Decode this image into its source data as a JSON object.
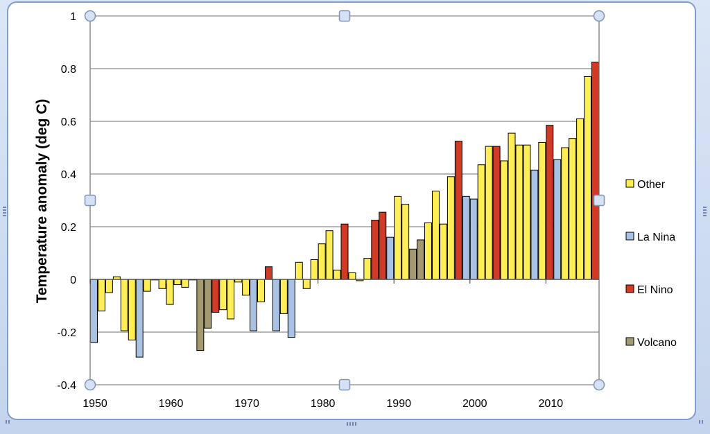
{
  "chart_data": {
    "type": "bar",
    "title": "",
    "xlabel": "",
    "ylabel": "Temperature anomaly (deg C)",
    "xlim": [
      1950,
      2016
    ],
    "ylim": [
      -0.4,
      1
    ],
    "x_ticks": [
      "1950",
      "1960",
      "1970",
      "1980",
      "1990",
      "2000",
      "2010"
    ],
    "y_ticks": [
      "1",
      "0.8",
      "0.6",
      "0.4",
      "0.2",
      "0",
      "-0.2",
      "-0.4"
    ],
    "grid": true,
    "legend_position": "right",
    "categories_legend": [
      {
        "name": "Other",
        "color": "#ffee55"
      },
      {
        "name": "La Nina",
        "color": "#a9c2e4"
      },
      {
        "name": "El Nino",
        "color": "#d13a25"
      },
      {
        "name": "Volcano",
        "color": "#a49a72"
      }
    ],
    "bars": [
      {
        "year": 1950,
        "value": -0.24,
        "category": "La Nina"
      },
      {
        "year": 1951,
        "value": -0.12,
        "category": "Other"
      },
      {
        "year": 1952,
        "value": -0.05,
        "category": "Other"
      },
      {
        "year": 1953,
        "value": 0.01,
        "category": "Other"
      },
      {
        "year": 1954,
        "value": -0.195,
        "category": "Other"
      },
      {
        "year": 1955,
        "value": -0.23,
        "category": "Other"
      },
      {
        "year": 1956,
        "value": -0.295,
        "category": "La Nina"
      },
      {
        "year": 1957,
        "value": -0.045,
        "category": "Other"
      },
      {
        "year": 1958,
        "value": 0.0,
        "category": "Other"
      },
      {
        "year": 1959,
        "value": -0.035,
        "category": "Other"
      },
      {
        "year": 1960,
        "value": -0.095,
        "category": "Other"
      },
      {
        "year": 1961,
        "value": -0.02,
        "category": "Other"
      },
      {
        "year": 1962,
        "value": -0.03,
        "category": "Other"
      },
      {
        "year": 1963,
        "value": 0.0,
        "category": "Other"
      },
      {
        "year": 1964,
        "value": -0.27,
        "category": "Volcano"
      },
      {
        "year": 1965,
        "value": -0.185,
        "category": "Volcano"
      },
      {
        "year": 1966,
        "value": -0.125,
        "category": "El Nino"
      },
      {
        "year": 1967,
        "value": -0.115,
        "category": "Other"
      },
      {
        "year": 1968,
        "value": -0.15,
        "category": "Other"
      },
      {
        "year": 1969,
        "value": -0.01,
        "category": "Other"
      },
      {
        "year": 1970,
        "value": -0.06,
        "category": "Other"
      },
      {
        "year": 1971,
        "value": -0.195,
        "category": "La Nina"
      },
      {
        "year": 1972,
        "value": -0.085,
        "category": "Other"
      },
      {
        "year": 1973,
        "value": 0.048,
        "category": "El Nino"
      },
      {
        "year": 1974,
        "value": -0.195,
        "category": "La Nina"
      },
      {
        "year": 1975,
        "value": -0.13,
        "category": "Other"
      },
      {
        "year": 1976,
        "value": -0.22,
        "category": "La Nina"
      },
      {
        "year": 1977,
        "value": 0.065,
        "category": "Other"
      },
      {
        "year": 1978,
        "value": -0.035,
        "category": "Other"
      },
      {
        "year": 1979,
        "value": 0.075,
        "category": "Other"
      },
      {
        "year": 1980,
        "value": 0.135,
        "category": "Other"
      },
      {
        "year": 1981,
        "value": 0.185,
        "category": "Other"
      },
      {
        "year": 1982,
        "value": 0.035,
        "category": "Other"
      },
      {
        "year": 1983,
        "value": 0.21,
        "category": "El Nino"
      },
      {
        "year": 1984,
        "value": 0.025,
        "category": "Other"
      },
      {
        "year": 1985,
        "value": -0.005,
        "category": "Other"
      },
      {
        "year": 1986,
        "value": 0.08,
        "category": "Other"
      },
      {
        "year": 1987,
        "value": 0.225,
        "category": "El Nino"
      },
      {
        "year": 1988,
        "value": 0.255,
        "category": "El Nino"
      },
      {
        "year": 1989,
        "value": 0.16,
        "category": "La Nina"
      },
      {
        "year": 1990,
        "value": 0.315,
        "category": "Other"
      },
      {
        "year": 1991,
        "value": 0.285,
        "category": "Other"
      },
      {
        "year": 1992,
        "value": 0.115,
        "category": "Volcano"
      },
      {
        "year": 1993,
        "value": 0.15,
        "category": "Volcano"
      },
      {
        "year": 1994,
        "value": 0.215,
        "category": "Other"
      },
      {
        "year": 1995,
        "value": 0.335,
        "category": "Other"
      },
      {
        "year": 1996,
        "value": 0.21,
        "category": "Other"
      },
      {
        "year": 1997,
        "value": 0.39,
        "category": "Other"
      },
      {
        "year": 1998,
        "value": 0.525,
        "category": "El Nino"
      },
      {
        "year": 1999,
        "value": 0.315,
        "category": "La Nina"
      },
      {
        "year": 2000,
        "value": 0.305,
        "category": "La Nina"
      },
      {
        "year": 2001,
        "value": 0.435,
        "category": "Other"
      },
      {
        "year": 2002,
        "value": 0.505,
        "category": "Other"
      },
      {
        "year": 2003,
        "value": 0.505,
        "category": "El Nino"
      },
      {
        "year": 2004,
        "value": 0.45,
        "category": "Other"
      },
      {
        "year": 2005,
        "value": 0.555,
        "category": "Other"
      },
      {
        "year": 2006,
        "value": 0.51,
        "category": "Other"
      },
      {
        "year": 2007,
        "value": 0.51,
        "category": "Other"
      },
      {
        "year": 2008,
        "value": 0.415,
        "category": "La Nina"
      },
      {
        "year": 2009,
        "value": 0.52,
        "category": "Other"
      },
      {
        "year": 2010,
        "value": 0.585,
        "category": "El Nino"
      },
      {
        "year": 2011,
        "value": 0.455,
        "category": "La Nina"
      },
      {
        "year": 2012,
        "value": 0.5,
        "category": "Other"
      },
      {
        "year": 2013,
        "value": 0.535,
        "category": "Other"
      },
      {
        "year": 2014,
        "value": 0.61,
        "category": "Other"
      },
      {
        "year": 2015,
        "value": 0.77,
        "category": "Other"
      },
      {
        "year": 2016,
        "value": 0.825,
        "category": "El Nino"
      }
    ]
  }
}
